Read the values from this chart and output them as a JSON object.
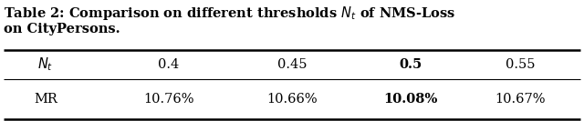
{
  "title_line1": "Table 2: Comparison on different thresholds $N_t$ of NMS-Loss",
  "title_line2": "on CityPersons.",
  "col_headers": [
    "$N_t$",
    "0.4",
    "0.45",
    "0.5",
    "0.55"
  ],
  "col_headers_bold": [
    false,
    false,
    false,
    true,
    false
  ],
  "row_label": "MR",
  "row_values": [
    "10.76%",
    "10.66%",
    "10.08%",
    "10.67%"
  ],
  "row_values_bold": [
    false,
    false,
    true,
    false
  ],
  "background_color": "#ffffff",
  "title_fontsize": 10.5,
  "table_fontsize": 10.5
}
